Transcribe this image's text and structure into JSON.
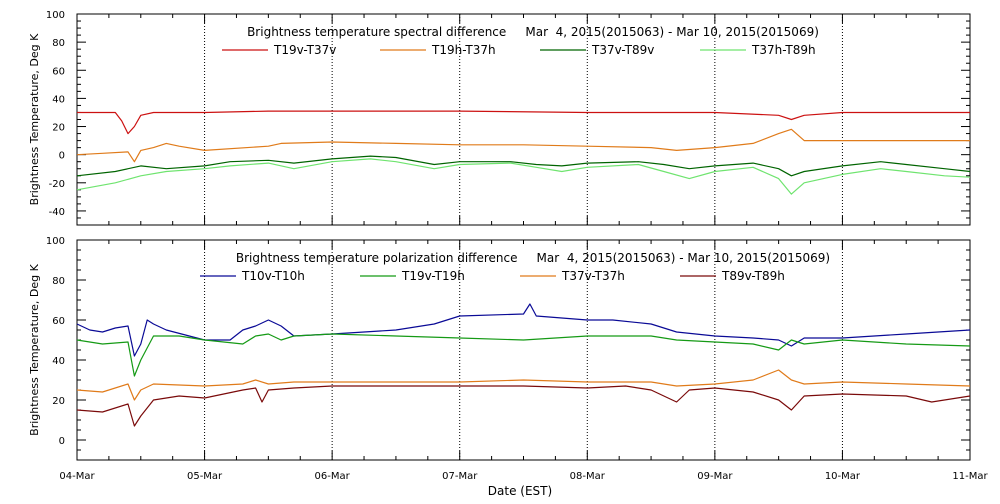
{
  "x_axis": {
    "label": "Date (EST)",
    "ticks": [
      "04-Mar",
      "05-Mar",
      "06-Mar",
      "07-Mar",
      "08-Mar",
      "09-Mar",
      "10-Mar",
      "11-Mar"
    ]
  },
  "chart_data": [
    {
      "type": "line",
      "title": "Brightness temperature spectral difference     Mar  4, 2015(2015063) - Mar 10, 2015(2015069)",
      "ylabel": "Brightness Temperature, Deg K",
      "ylim": [
        -50,
        100
      ],
      "yticks": [
        "100",
        "80",
        "60",
        "40",
        "20",
        "0",
        "-20",
        "-40"
      ],
      "ytick_values": [
        100,
        80,
        60,
        40,
        20,
        0,
        -20,
        -40
      ],
      "xlim": [
        0,
        7
      ],
      "grid": true,
      "series": [
        {
          "name": "T19v-T37v",
          "color": "#cc1111",
          "points": [
            [
              0,
              30
            ],
            [
              0.1,
              30
            ],
            [
              0.3,
              30
            ],
            [
              0.35,
              24
            ],
            [
              0.4,
              15
            ],
            [
              0.45,
              20
            ],
            [
              0.5,
              28
            ],
            [
              0.6,
              30
            ],
            [
              1.0,
              30
            ],
            [
              1.5,
              31
            ],
            [
              2,
              31
            ],
            [
              3,
              31
            ],
            [
              4,
              30
            ],
            [
              4.7,
              30
            ],
            [
              5,
              30
            ],
            [
              5.5,
              28
            ],
            [
              5.6,
              25
            ],
            [
              5.7,
              28
            ],
            [
              6,
              30
            ],
            [
              6.5,
              30
            ],
            [
              7,
              30
            ]
          ]
        },
        {
          "name": "T19h-T37h",
          "color": "#e07b1a",
          "points": [
            [
              0,
              0
            ],
            [
              0.2,
              1
            ],
            [
              0.4,
              2
            ],
            [
              0.45,
              -5
            ],
            [
              0.5,
              3
            ],
            [
              0.6,
              5
            ],
            [
              0.7,
              8
            ],
            [
              0.8,
              6
            ],
            [
              1.0,
              3
            ],
            [
              1.5,
              6
            ],
            [
              1.6,
              8
            ],
            [
              2.0,
              9
            ],
            [
              2.5,
              8
            ],
            [
              3,
              7
            ],
            [
              3.5,
              7
            ],
            [
              4,
              6
            ],
            [
              4.5,
              5
            ],
            [
              4.7,
              3
            ],
            [
              5,
              5
            ],
            [
              5.3,
              8
            ],
            [
              5.5,
              15
            ],
            [
              5.6,
              18
            ],
            [
              5.7,
              10
            ],
            [
              6,
              10
            ],
            [
              6.5,
              10
            ],
            [
              7,
              10
            ]
          ]
        },
        {
          "name": "T37v-T89v",
          "color": "#006400",
          "points": [
            [
              0,
              -15
            ],
            [
              0.3,
              -12
            ],
            [
              0.5,
              -8
            ],
            [
              0.7,
              -10
            ],
            [
              1.0,
              -8
            ],
            [
              1.2,
              -5
            ],
            [
              1.5,
              -4
            ],
            [
              1.7,
              -6
            ],
            [
              2.0,
              -3
            ],
            [
              2.3,
              -1
            ],
            [
              2.5,
              -2
            ],
            [
              2.8,
              -7
            ],
            [
              3.0,
              -5
            ],
            [
              3.4,
              -5
            ],
            [
              3.6,
              -7
            ],
            [
              3.8,
              -8
            ],
            [
              4.0,
              -6
            ],
            [
              4.4,
              -5
            ],
            [
              4.6,
              -7
            ],
            [
              4.8,
              -10
            ],
            [
              5.0,
              -8
            ],
            [
              5.3,
              -6
            ],
            [
              5.5,
              -10
            ],
            [
              5.6,
              -15
            ],
            [
              5.7,
              -12
            ],
            [
              6.0,
              -8
            ],
            [
              6.3,
              -5
            ],
            [
              6.5,
              -7
            ],
            [
              6.8,
              -10
            ],
            [
              7,
              -12
            ]
          ]
        },
        {
          "name": "T37h-T89h",
          "color": "#6fe46f",
          "points": [
            [
              0,
              -25
            ],
            [
              0.3,
              -20
            ],
            [
              0.5,
              -15
            ],
            [
              0.7,
              -12
            ],
            [
              1.0,
              -10
            ],
            [
              1.2,
              -8
            ],
            [
              1.5,
              -6
            ],
            [
              1.7,
              -10
            ],
            [
              2.0,
              -5
            ],
            [
              2.3,
              -3
            ],
            [
              2.5,
              -5
            ],
            [
              2.8,
              -10
            ],
            [
              3.0,
              -7
            ],
            [
              3.4,
              -6
            ],
            [
              3.6,
              -9
            ],
            [
              3.8,
              -12
            ],
            [
              4.0,
              -9
            ],
            [
              4.4,
              -7
            ],
            [
              4.6,
              -12
            ],
            [
              4.8,
              -17
            ],
            [
              5.0,
              -12
            ],
            [
              5.3,
              -9
            ],
            [
              5.5,
              -17
            ],
            [
              5.6,
              -28
            ],
            [
              5.7,
              -20
            ],
            [
              6.0,
              -14
            ],
            [
              6.3,
              -10
            ],
            [
              6.5,
              -12
            ],
            [
              6.8,
              -15
            ],
            [
              7,
              -16
            ]
          ]
        }
      ]
    },
    {
      "type": "line",
      "title": "Brightness temperature polarization difference     Mar  4, 2015(2015063) - Mar 10, 2015(2015069)",
      "ylabel": "Brightness Temperature, Deg K",
      "ylim": [
        -10,
        100
      ],
      "yticks": [
        "100",
        "80",
        "60",
        "40",
        "20",
        "0"
      ],
      "ytick_values": [
        100,
        80,
        60,
        40,
        20,
        0
      ],
      "xlim": [
        0,
        7
      ],
      "grid": true,
      "series": [
        {
          "name": "T10v-T10h",
          "color": "#0a0a96",
          "points": [
            [
              0,
              58
            ],
            [
              0.1,
              55
            ],
            [
              0.2,
              54
            ],
            [
              0.3,
              56
            ],
            [
              0.4,
              57
            ],
            [
              0.45,
              42
            ],
            [
              0.5,
              48
            ],
            [
              0.55,
              60
            ],
            [
              0.6,
              58
            ],
            [
              0.7,
              55
            ],
            [
              1.0,
              50
            ],
            [
              1.2,
              50
            ],
            [
              1.3,
              55
            ],
            [
              1.4,
              57
            ],
            [
              1.5,
              60
            ],
            [
              1.6,
              57
            ],
            [
              1.7,
              52
            ],
            [
              2.0,
              53
            ],
            [
              2.5,
              55
            ],
            [
              2.8,
              58
            ],
            [
              3.0,
              62
            ],
            [
              3.5,
              63
            ],
            [
              3.55,
              68
            ],
            [
              3.6,
              62
            ],
            [
              4.0,
              60
            ],
            [
              4.2,
              60
            ],
            [
              4.5,
              58
            ],
            [
              4.7,
              54
            ],
            [
              5.0,
              52
            ],
            [
              5.3,
              51
            ],
            [
              5.5,
              50
            ],
            [
              5.6,
              47
            ],
            [
              5.7,
              51
            ],
            [
              6.0,
              51
            ],
            [
              6.5,
              53
            ],
            [
              7,
              55
            ]
          ]
        },
        {
          "name": "T19v-T19h",
          "color": "#159a15",
          "points": [
            [
              0,
              50
            ],
            [
              0.2,
              48
            ],
            [
              0.4,
              49
            ],
            [
              0.45,
              32
            ],
            [
              0.5,
              40
            ],
            [
              0.6,
              52
            ],
            [
              0.8,
              52
            ],
            [
              1.0,
              50
            ],
            [
              1.3,
              48
            ],
            [
              1.4,
              52
            ],
            [
              1.5,
              53
            ],
            [
              1.6,
              50
            ],
            [
              1.7,
              52
            ],
            [
              2.0,
              53
            ],
            [
              2.5,
              52
            ],
            [
              3.0,
              51
            ],
            [
              3.5,
              50
            ],
            [
              4.0,
              52
            ],
            [
              4.5,
              52
            ],
            [
              4.7,
              50
            ],
            [
              5.0,
              49
            ],
            [
              5.3,
              48
            ],
            [
              5.5,
              45
            ],
            [
              5.6,
              50
            ],
            [
              5.7,
              48
            ],
            [
              6.0,
              50
            ],
            [
              6.5,
              48
            ],
            [
              7,
              47
            ]
          ]
        },
        {
          "name": "T37v-T37h",
          "color": "#e07b1a",
          "points": [
            [
              0,
              25
            ],
            [
              0.2,
              24
            ],
            [
              0.4,
              28
            ],
            [
              0.45,
              20
            ],
            [
              0.5,
              25
            ],
            [
              0.6,
              28
            ],
            [
              1.0,
              27
            ],
            [
              1.3,
              28
            ],
            [
              1.4,
              30
            ],
            [
              1.5,
              28
            ],
            [
              1.7,
              29
            ],
            [
              2.0,
              29
            ],
            [
              2.5,
              29
            ],
            [
              3.0,
              29
            ],
            [
              3.5,
              30
            ],
            [
              4.0,
              29
            ],
            [
              4.5,
              29
            ],
            [
              4.7,
              27
            ],
            [
              5.0,
              28
            ],
            [
              5.3,
              30
            ],
            [
              5.5,
              35
            ],
            [
              5.6,
              30
            ],
            [
              5.7,
              28
            ],
            [
              6.0,
              29
            ],
            [
              6.5,
              28
            ],
            [
              7,
              27
            ]
          ]
        },
        {
          "name": "T89v-T89h",
          "color": "#7a0a0a",
          "points": [
            [
              0,
              15
            ],
            [
              0.2,
              14
            ],
            [
              0.4,
              18
            ],
            [
              0.45,
              7
            ],
            [
              0.5,
              12
            ],
            [
              0.6,
              20
            ],
            [
              0.8,
              22
            ],
            [
              1.0,
              21
            ],
            [
              1.3,
              25
            ],
            [
              1.4,
              26
            ],
            [
              1.45,
              19
            ],
            [
              1.5,
              25
            ],
            [
              1.7,
              26
            ],
            [
              2.0,
              27
            ],
            [
              2.5,
              27
            ],
            [
              3.0,
              27
            ],
            [
              3.5,
              27
            ],
            [
              4.0,
              26
            ],
            [
              4.3,
              27
            ],
            [
              4.5,
              25
            ],
            [
              4.7,
              19
            ],
            [
              4.8,
              25
            ],
            [
              5.0,
              26
            ],
            [
              5.3,
              24
            ],
            [
              5.5,
              20
            ],
            [
              5.6,
              15
            ],
            [
              5.7,
              22
            ],
            [
              6.0,
              23
            ],
            [
              6.5,
              22
            ],
            [
              6.7,
              19
            ],
            [
              7,
              22
            ]
          ]
        }
      ]
    }
  ]
}
